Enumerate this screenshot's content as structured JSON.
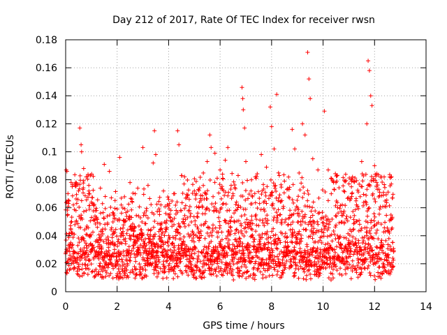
{
  "chart_data": {
    "type": "scatter",
    "title": "Day 212 of 2017, Rate Of TEC Index for receiver rwsn",
    "xlabel": "GPS time / hours",
    "ylabel": "ROTI / TECUs",
    "xlim": [
      0,
      14
    ],
    "ylim": [
      0,
      0.18
    ],
    "x_ticks": [
      0,
      2,
      4,
      6,
      8,
      10,
      12,
      14
    ],
    "x_tick_labels": [
      "0",
      "2",
      "4",
      "6",
      "8",
      "10",
      "12",
      "14"
    ],
    "y_ticks": [
      0,
      0.02,
      0.04,
      0.06,
      0.08,
      0.1,
      0.12,
      0.14,
      0.16,
      0.18
    ],
    "y_tick_labels": [
      "0",
      "0.02",
      "0.04",
      "0.06",
      "0.08",
      "0.1",
      "0.12",
      "0.14",
      "0.16",
      "0.18"
    ],
    "grid": true,
    "marker": "plus",
    "color": "#ff0000",
    "x_data_extent": [
      0,
      12.75
    ],
    "series": [
      {
        "name": "ROTI",
        "points": [
          [
            0.02,
            0.087
          ],
          [
            0.05,
            0.086
          ],
          [
            0.1,
            0.061
          ],
          [
            0.15,
            0.032
          ],
          [
            0.2,
            0.045
          ],
          [
            0.3,
            0.062
          ],
          [
            0.4,
            0.058
          ],
          [
            0.5,
            0.072
          ],
          [
            0.55,
            0.117
          ],
          [
            0.6,
            0.105
          ],
          [
            0.62,
            0.1
          ],
          [
            0.7,
            0.088
          ],
          [
            0.8,
            0.082
          ],
          [
            0.9,
            0.076
          ],
          [
            1.0,
            0.064
          ],
          [
            1.2,
            0.058
          ],
          [
            1.35,
            0.074
          ],
          [
            1.5,
            0.091
          ],
          [
            1.7,
            0.086
          ],
          [
            1.9,
            0.052
          ],
          [
            2.1,
            0.096
          ],
          [
            2.3,
            0.05
          ],
          [
            2.5,
            0.078
          ],
          [
            2.7,
            0.07
          ],
          [
            2.8,
            0.074
          ],
          [
            3.0,
            0.103
          ],
          [
            3.2,
            0.076
          ],
          [
            3.4,
            0.092
          ],
          [
            3.45,
            0.115
          ],
          [
            3.5,
            0.098
          ],
          [
            3.7,
            0.062
          ],
          [
            3.8,
            0.072
          ],
          [
            4.0,
            0.066
          ],
          [
            4.2,
            0.07
          ],
          [
            4.35,
            0.115
          ],
          [
            4.4,
            0.105
          ],
          [
            4.5,
            0.083
          ],
          [
            4.6,
            0.077
          ],
          [
            4.8,
            0.066
          ],
          [
            5.0,
            0.072
          ],
          [
            5.2,
            0.064
          ],
          [
            5.5,
            0.093
          ],
          [
            5.6,
            0.112
          ],
          [
            5.65,
            0.103
          ],
          [
            5.8,
            0.099
          ],
          [
            6.0,
            0.087
          ],
          [
            6.1,
            0.081
          ],
          [
            6.2,
            0.094
          ],
          [
            6.3,
            0.103
          ],
          [
            6.5,
            0.07
          ],
          [
            6.7,
            0.083
          ],
          [
            6.85,
            0.146
          ],
          [
            6.88,
            0.138
          ],
          [
            6.9,
            0.13
          ],
          [
            6.95,
            0.117
          ],
          [
            7.0,
            0.093
          ],
          [
            7.2,
            0.072
          ],
          [
            7.4,
            0.081
          ],
          [
            7.6,
            0.098
          ],
          [
            7.8,
            0.089
          ],
          [
            7.95,
            0.132
          ],
          [
            8.0,
            0.118
          ],
          [
            8.1,
            0.102
          ],
          [
            8.2,
            0.141
          ],
          [
            8.3,
            0.083
          ],
          [
            8.5,
            0.079
          ],
          [
            8.6,
            0.073
          ],
          [
            8.8,
            0.116
          ],
          [
            8.9,
            0.102
          ],
          [
            9.2,
            0.12
          ],
          [
            9.3,
            0.112
          ],
          [
            9.4,
            0.171
          ],
          [
            9.45,
            0.152
          ],
          [
            9.5,
            0.138
          ],
          [
            9.6,
            0.095
          ],
          [
            9.8,
            0.087
          ],
          [
            10.05,
            0.129
          ],
          [
            10.2,
            0.087
          ],
          [
            10.5,
            0.078
          ],
          [
            10.8,
            0.072
          ],
          [
            11.1,
            0.075
          ],
          [
            11.3,
            0.062
          ],
          [
            11.5,
            0.093
          ],
          [
            11.7,
            0.12
          ],
          [
            11.75,
            0.165
          ],
          [
            11.8,
            0.158
          ],
          [
            11.85,
            0.14
          ],
          [
            11.9,
            0.133
          ],
          [
            12.0,
            0.09
          ],
          [
            12.2,
            0.071
          ],
          [
            12.4,
            0.061
          ],
          [
            12.65,
            0.077
          ],
          [
            12.7,
            0.067
          ]
        ]
      }
    ]
  }
}
